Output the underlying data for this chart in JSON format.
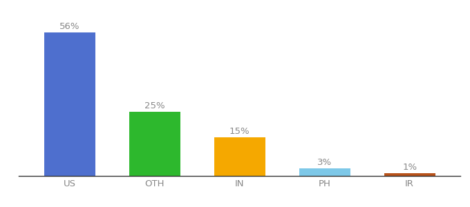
{
  "categories": [
    "US",
    "OTH",
    "IN",
    "PH",
    "IR"
  ],
  "values": [
    56,
    25,
    15,
    3,
    1
  ],
  "bar_colors": [
    "#4e6fce",
    "#2db82d",
    "#f5a800",
    "#7dc8e8",
    "#b8521a"
  ],
  "labels": [
    "56%",
    "25%",
    "15%",
    "3%",
    "1%"
  ],
  "ylim": [
    0,
    63
  ],
  "bar_width": 0.6,
  "label_fontsize": 9.5,
  "tick_fontsize": 9.5,
  "label_color": "#888888",
  "tick_color": "#888888",
  "spine_color": "#333333",
  "background_color": "#ffffff"
}
